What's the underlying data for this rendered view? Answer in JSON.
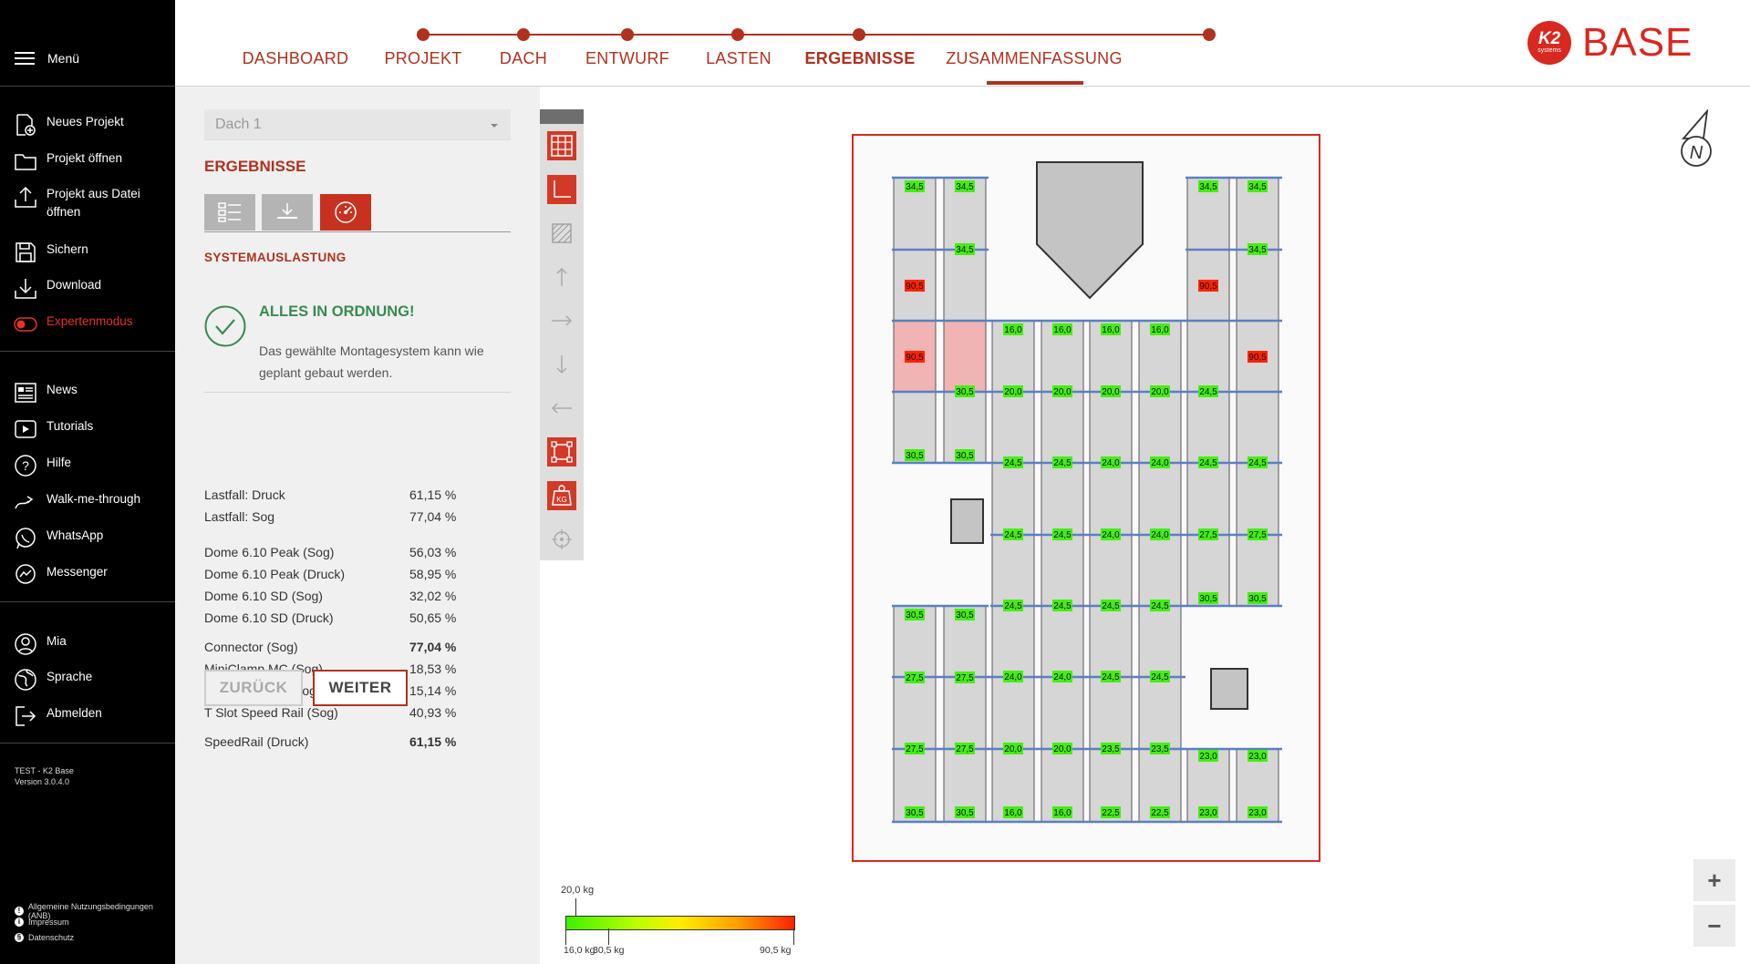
{
  "sidebar": {
    "menu": "Menü",
    "items_a": [
      {
        "label": "Neues Projekt",
        "icon": "new-file-icon"
      },
      {
        "label": "Projekt öffnen",
        "icon": "folder-icon"
      },
      {
        "label": "Projekt aus Datei",
        "label2": "öffnen",
        "icon": "upload-icon"
      },
      {
        "label": "Sichern",
        "icon": "save-icon"
      },
      {
        "label": "Download",
        "icon": "download-icon"
      },
      {
        "label": "Expertenmodus",
        "icon": "toggle-icon"
      }
    ],
    "items_b": [
      {
        "label": "News",
        "icon": "news-icon"
      },
      {
        "label": "Tutorials",
        "icon": "play-icon"
      },
      {
        "label": "Hilfe",
        "icon": "help-icon"
      },
      {
        "label": "Walk-me-through",
        "icon": "walkthrough-icon"
      },
      {
        "label": "WhatsApp",
        "icon": "whatsapp-icon"
      },
      {
        "label": "Messenger",
        "icon": "messenger-icon"
      }
    ],
    "items_c": [
      {
        "label": "Mia",
        "icon": "user-icon"
      },
      {
        "label": "Sprache",
        "icon": "globe-icon"
      },
      {
        "label": "Abmelden",
        "icon": "logout-icon"
      }
    ],
    "version_line1": "TEST - K2 Base",
    "version_line2": "Version 3.0.4.0",
    "footer": [
      "Allgemeine Nutzungsbedingungen (ANB)",
      "Impressum",
      "Datenschutz"
    ]
  },
  "nav": {
    "steps": [
      "DASHBOARD",
      "PROJEKT",
      "DACH",
      "ENTWURF",
      "LASTEN",
      "ERGEBNISSE",
      "ZUSAMMENFASSUNG"
    ],
    "active": "ERGEBNISSE"
  },
  "logo": {
    "k2": "K2",
    "sub": "systems",
    "base": "BASE"
  },
  "panel": {
    "roof_select": "Dach 1",
    "title": "ERGEBNISSE",
    "section": "SYSTEMAUSLASTUNG",
    "ok_title": "ALLES IN ORDNUNG!",
    "ok_text": "Das gewählte Montagesystem kann wie geplant gebaut werden.",
    "results": [
      {
        "label": "Lastfall: Druck",
        "value": "61,15 %"
      },
      {
        "label": "Lastfall: Sog",
        "value": "77,04 %"
      },
      {
        "label": "Dome 6.10 Peak (Sog)",
        "value": "56,03 %"
      },
      {
        "label": "Dome 6.10 Peak (Druck)",
        "value": "58,95 %"
      },
      {
        "label": "Dome 6.10 SD (Sog)",
        "value": "32,02 %"
      },
      {
        "label": "Dome 6.10 SD (Druck)",
        "value": "50,65 %"
      },
      {
        "label": "Connector (Sog)",
        "value": "77,04 %"
      },
      {
        "label": "MiniClamp MC (Sog)",
        "value": "18,53 %"
      },
      {
        "label": "MiniClamp EC (Sog)",
        "value": "15,14 %"
      },
      {
        "label": "T Slot Speed Rail (Sog)",
        "value": "40,93 %"
      },
      {
        "label": "SpeedRail (Druck)",
        "value": "61,15 %"
      }
    ],
    "back": "ZURÜCK",
    "next": "WEITER"
  },
  "legend": {
    "title": "20,0 kg",
    "min": "16,0 kg",
    "mid": "30,5 kg",
    "max": "90,5 kg"
  },
  "zoom": {
    "plus": "+",
    "minus": "−"
  },
  "compass": "N",
  "colors": {
    "accent": "#b0321e",
    "ok": "#3a8a50",
    "load_low": "#44ee11",
    "load_high": "#ff2200"
  },
  "layout_loads": {
    "columns": [
      {
        "id": "c1",
        "values": [
          [
            "34,5",
            "g"
          ],
          [
            "90,5",
            "r"
          ],
          [
            "90,5",
            "r"
          ],
          [
            "30,5",
            "g"
          ],
          [
            "30,5",
            "g"
          ],
          [
            "27,5",
            "g"
          ],
          [
            "27,5",
            "g"
          ],
          [
            "30,5",
            "g"
          ]
        ]
      },
      {
        "id": "c2",
        "values": [
          [
            "34,5",
            "g"
          ],
          [
            "34,5",
            "g"
          ],
          [
            "30,5",
            "g"
          ],
          [
            "30,5",
            "g"
          ],
          [
            "30,5",
            "g"
          ],
          [
            "27,5",
            "g"
          ],
          [
            "27,5",
            "g"
          ],
          [
            "30,5",
            "g"
          ]
        ]
      },
      {
        "id": "c3",
        "values": [
          [
            "16,0",
            "g"
          ],
          [
            "20,0",
            "g"
          ],
          [
            "24,5",
            "g"
          ],
          [
            "24,5",
            "g"
          ],
          [
            "24,5",
            "g"
          ],
          [
            "24,0",
            "g"
          ],
          [
            "20,0",
            "g"
          ],
          [
            "16,0",
            "g"
          ]
        ]
      },
      {
        "id": "c4",
        "values": [
          [
            "16,0",
            "g"
          ],
          [
            "20,0",
            "g"
          ],
          [
            "24,5",
            "g"
          ],
          [
            "24,5",
            "g"
          ],
          [
            "24,5",
            "g"
          ],
          [
            "24,0",
            "g"
          ],
          [
            "20,0",
            "g"
          ],
          [
            "16,0",
            "g"
          ]
        ]
      },
      {
        "id": "c5",
        "values": [
          [
            "16,0",
            "g"
          ],
          [
            "20,0",
            "g"
          ],
          [
            "24,0",
            "g"
          ],
          [
            "24,0",
            "g"
          ],
          [
            "24,5",
            "g"
          ],
          [
            "24,5",
            "g"
          ],
          [
            "23,5",
            "g"
          ],
          [
            "22,5",
            "g"
          ]
        ]
      },
      {
        "id": "c6",
        "values": [
          [
            "16,0",
            "g"
          ],
          [
            "20,0",
            "g"
          ],
          [
            "24,0",
            "g"
          ],
          [
            "24,0",
            "g"
          ],
          [
            "24,5",
            "g"
          ],
          [
            "24,5",
            "g"
          ],
          [
            "23,5",
            "g"
          ],
          [
            "22,5",
            "g"
          ]
        ]
      },
      {
        "id": "c7",
        "values": [
          [
            "34,5",
            "g"
          ],
          [
            "90,5",
            "r"
          ],
          [
            "24,5",
            "g"
          ],
          [
            "24,5",
            "g"
          ],
          [
            "27,5",
            "g"
          ],
          [
            "30,5",
            "g"
          ],
          [
            "23,0",
            "g"
          ],
          [
            "23,0",
            "g"
          ]
        ]
      },
      {
        "id": "c8",
        "values": [
          [
            "34,5",
            "g"
          ],
          [
            "34,5",
            "g"
          ],
          [
            "90,5",
            "r"
          ],
          [
            "24,5",
            "g"
          ],
          [
            "27,5",
            "g"
          ],
          [
            "30,5",
            "g"
          ],
          [
            "23,0",
            "g"
          ],
          [
            "23,0",
            "g"
          ]
        ]
      }
    ]
  }
}
